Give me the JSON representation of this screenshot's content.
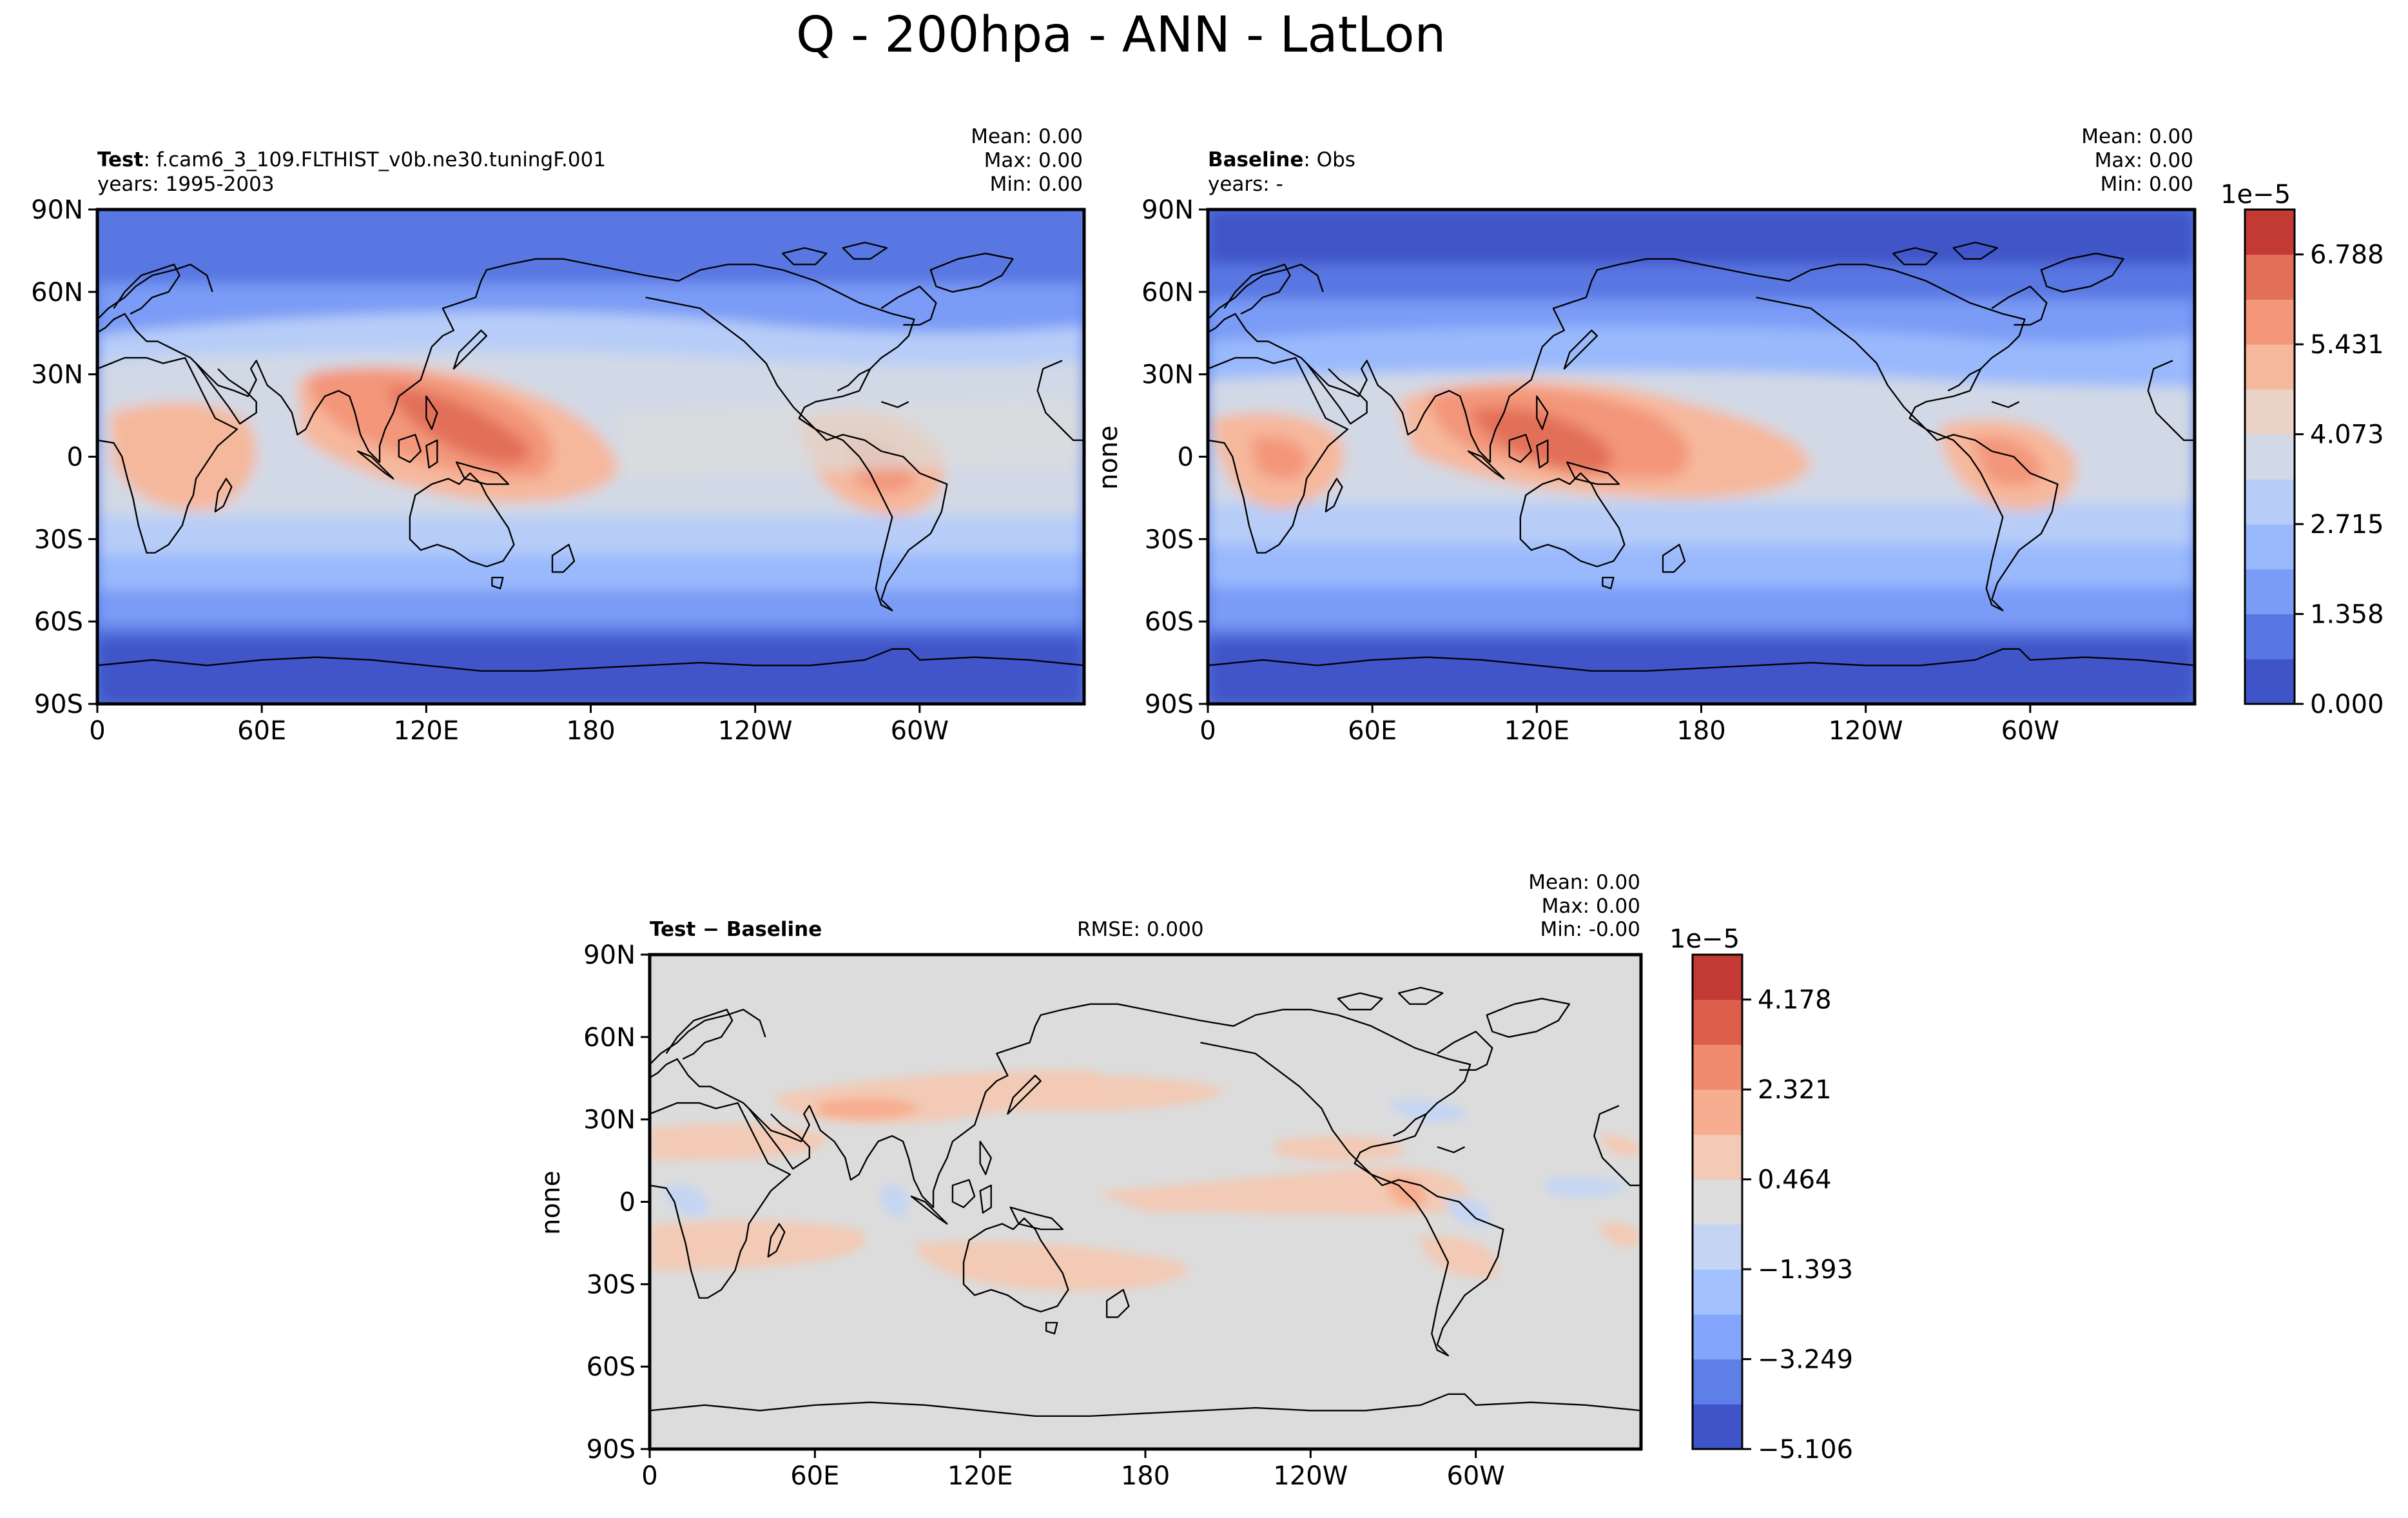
{
  "figure_title": "Q - 200hpa - ANN - LatLon",
  "panels": {
    "test": {
      "title_bold": "Test",
      "title_rest": ": f.cam6_3_109.FLTHIST_v0b.ne30.tuningF.001",
      "years": "years: 1995-2003",
      "stats": {
        "mean": "Mean:  0.00",
        "max": "Max:  0.00",
        "min": "Min:  0.00"
      },
      "ylabel": ""
    },
    "baseline": {
      "title_bold": "Baseline",
      "title_rest": ": Obs",
      "years": "years: -",
      "stats": {
        "mean": "Mean:  0.00",
        "max": "Max:  0.00",
        "min": "Min:  0.00"
      },
      "ylabel": "none"
    },
    "diff": {
      "title_bold": "Test − Baseline",
      "rmse": "RMSE: 0.000",
      "stats": {
        "mean": "Mean:  0.00",
        "max": "Max:  0.00",
        "min": "Min:  -0.00"
      },
      "ylabel": "none"
    }
  },
  "lat_ticks": [
    "90N",
    "60N",
    "30N",
    "0",
    "30S",
    "60S",
    "90S"
  ],
  "lon_ticks": [
    "0",
    "60E",
    "120E",
    "180",
    "120W",
    "60W"
  ],
  "colorbars": {
    "field": {
      "exponent": "1e−5",
      "ticks": [
        "0.000",
        "1.358",
        "2.715",
        "4.073",
        "5.431",
        "6.788"
      ],
      "colors": [
        "#3f54c8",
        "#5977e2",
        "#7a9bf6",
        "#9ab9fc",
        "#b7cdf8",
        "#d2d9e6",
        "#ead2c6",
        "#f6b89c",
        "#f3967a",
        "#e27059",
        "#c33a34"
      ]
    },
    "diff": {
      "exponent": "1e−5",
      "ticks": [
        "−5.106",
        "−3.249",
        "−1.393",
        "0.464",
        "2.321",
        "4.178"
      ],
      "colors": [
        "#3f54c8",
        "#5f7fe8",
        "#83a5fb",
        "#a4c2fe",
        "#c4d5f3",
        "#dcdcdc",
        "#f2cab5",
        "#f7ad8f",
        "#f08b6d",
        "#dc5e4b",
        "#c33a34"
      ]
    }
  },
  "chart_data": [
    {
      "type": "heatmap",
      "name": "Test",
      "variable": "Q",
      "level": "200hpa",
      "season": "ANN",
      "units_exponent": "1e-5",
      "x_ticks": [
        "0",
        "60E",
        "120E",
        "180",
        "120W",
        "60W"
      ],
      "y_ticks": [
        "90N",
        "60N",
        "30N",
        "0",
        "30S",
        "60S",
        "90S"
      ],
      "stats": {
        "mean": 0.0,
        "max": 0.0,
        "min": 0.0
      },
      "colorbar_ticks": [
        0.0,
        1.358,
        2.715,
        4.073,
        5.431,
        6.788
      ],
      "zonal_band_levels": [
        {
          "lat_range": [
            60,
            90
          ],
          "level_index": 1
        },
        {
          "lat_range": [
            40,
            60
          ],
          "level_index": 2
        },
        {
          "lat_range": [
            25,
            40
          ],
          "level_index": 4
        },
        {
          "lat_range": [
            -15,
            15
          ],
          "level_index": 7
        },
        {
          "lat_range": [
            -40,
            -15
          ],
          "level_index": 4
        },
        {
          "lat_range": [
            -60,
            -40
          ],
          "level_index": 2
        },
        {
          "lat_range": [
            -90,
            -60
          ],
          "level_index": 0
        }
      ]
    },
    {
      "type": "heatmap",
      "name": "Baseline",
      "variable": "Q",
      "level": "200hpa",
      "season": "ANN",
      "units_exponent": "1e-5",
      "x_ticks": [
        "0",
        "60E",
        "120E",
        "180",
        "120W",
        "60W"
      ],
      "y_ticks": [
        "90N",
        "60N",
        "30N",
        "0",
        "30S",
        "60S",
        "90S"
      ],
      "stats": {
        "mean": 0.0,
        "max": 0.0,
        "min": 0.0
      },
      "colorbar_ticks": [
        0.0,
        1.358,
        2.715,
        4.073,
        5.431,
        6.788
      ]
    },
    {
      "type": "heatmap",
      "name": "Test − Baseline",
      "variable": "Q",
      "level": "200hpa",
      "season": "ANN",
      "units_exponent": "1e-5",
      "x_ticks": [
        "0",
        "60E",
        "120E",
        "180",
        "120W",
        "60W"
      ],
      "y_ticks": [
        "90N",
        "60N",
        "30N",
        "0",
        "30S",
        "60S",
        "90S"
      ],
      "stats": {
        "mean": 0.0,
        "max": 0.0,
        "min": -0.0,
        "rmse": 0.0
      },
      "colorbar_ticks": [
        -5.106,
        -3.249,
        -1.393,
        0.464,
        2.321,
        4.178
      ]
    }
  ]
}
